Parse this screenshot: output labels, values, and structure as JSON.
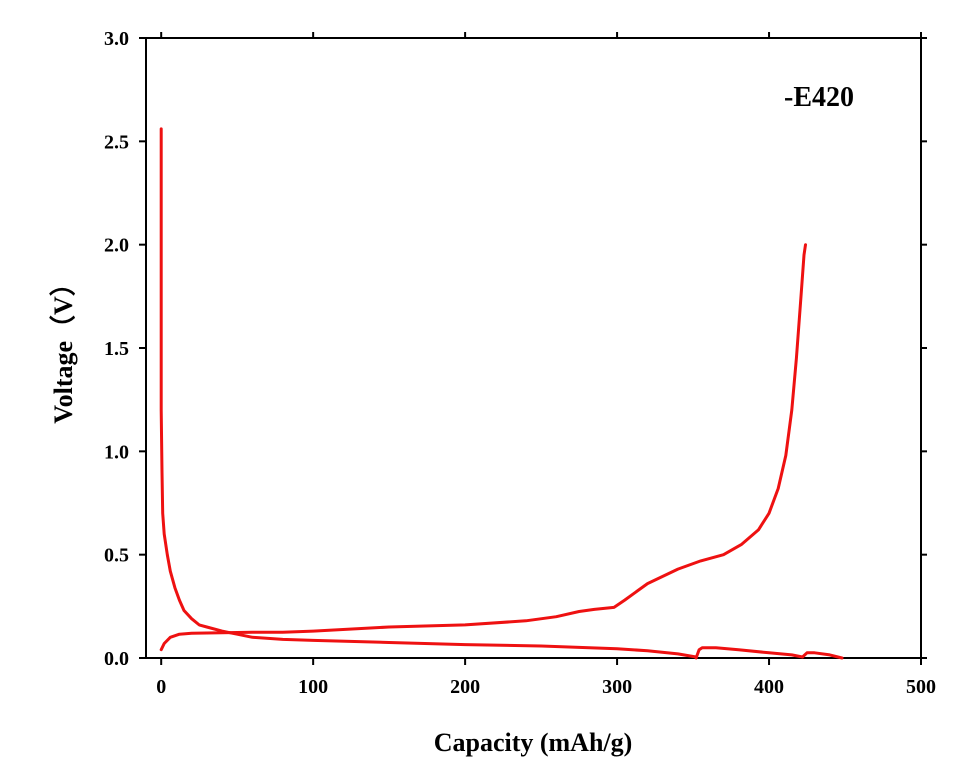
{
  "chart_data": {
    "type": "line",
    "title": "",
    "xlabel": "Capacity (mAh/g)",
    "ylabel": "Voltage（V）",
    "xlim": [
      -10,
      500
    ],
    "ylim": [
      0,
      3.0
    ],
    "x_ticks": [
      0,
      100,
      200,
      300,
      400,
      500
    ],
    "x_tick_labels": [
      "0",
      "100",
      "200",
      "300",
      "400",
      "500"
    ],
    "y_ticks": [
      0,
      0.5,
      1.0,
      1.5,
      2.0,
      2.5,
      3.0
    ],
    "y_tick_labels": [
      "0.0",
      "0.5",
      "1.0",
      "1.5",
      "2.0",
      "2.5",
      "3.0"
    ],
    "grid": false,
    "color": "#ee1111",
    "annotation": "-E420",
    "series": [
      {
        "id": "discharge",
        "x": [
          0,
          0,
          0.5,
          1,
          2,
          4,
          6,
          9,
          12,
          15,
          20,
          25,
          30,
          40,
          50,
          60,
          80,
          100,
          150,
          200,
          250,
          300,
          320,
          340,
          352
        ],
        "y": [
          2.56,
          1.2,
          0.9,
          0.7,
          0.6,
          0.5,
          0.42,
          0.34,
          0.28,
          0.23,
          0.19,
          0.16,
          0.15,
          0.13,
          0.115,
          0.1,
          0.09,
          0.085,
          0.075,
          0.065,
          0.058,
          0.045,
          0.035,
          0.02,
          0.005
        ]
      },
      {
        "id": "discharge-2",
        "x": [
          352,
          354,
          356,
          365,
          380,
          400,
          415,
          422
        ],
        "y": [
          0.0,
          0.04,
          0.05,
          0.05,
          0.04,
          0.025,
          0.015,
          0.005
        ]
      },
      {
        "id": "discharge-3",
        "x": [
          422,
          425,
          430,
          440,
          448
        ],
        "y": [
          0.005,
          0.025,
          0.025,
          0.015,
          0.0
        ]
      },
      {
        "id": "charge",
        "x": [
          0,
          2,
          6,
          12,
          20,
          40,
          60,
          80,
          100,
          150,
          200,
          240,
          260,
          275,
          285,
          298,
          305,
          320,
          340,
          355,
          370,
          382,
          393,
          400,
          406,
          411,
          415,
          418,
          421,
          423,
          424
        ],
        "y": [
          0.04,
          0.07,
          0.1,
          0.115,
          0.12,
          0.122,
          0.125,
          0.125,
          0.13,
          0.15,
          0.16,
          0.18,
          0.2,
          0.225,
          0.235,
          0.245,
          0.28,
          0.36,
          0.43,
          0.47,
          0.5,
          0.55,
          0.62,
          0.7,
          0.82,
          0.98,
          1.2,
          1.45,
          1.75,
          1.95,
          2.0
        ]
      }
    ]
  }
}
